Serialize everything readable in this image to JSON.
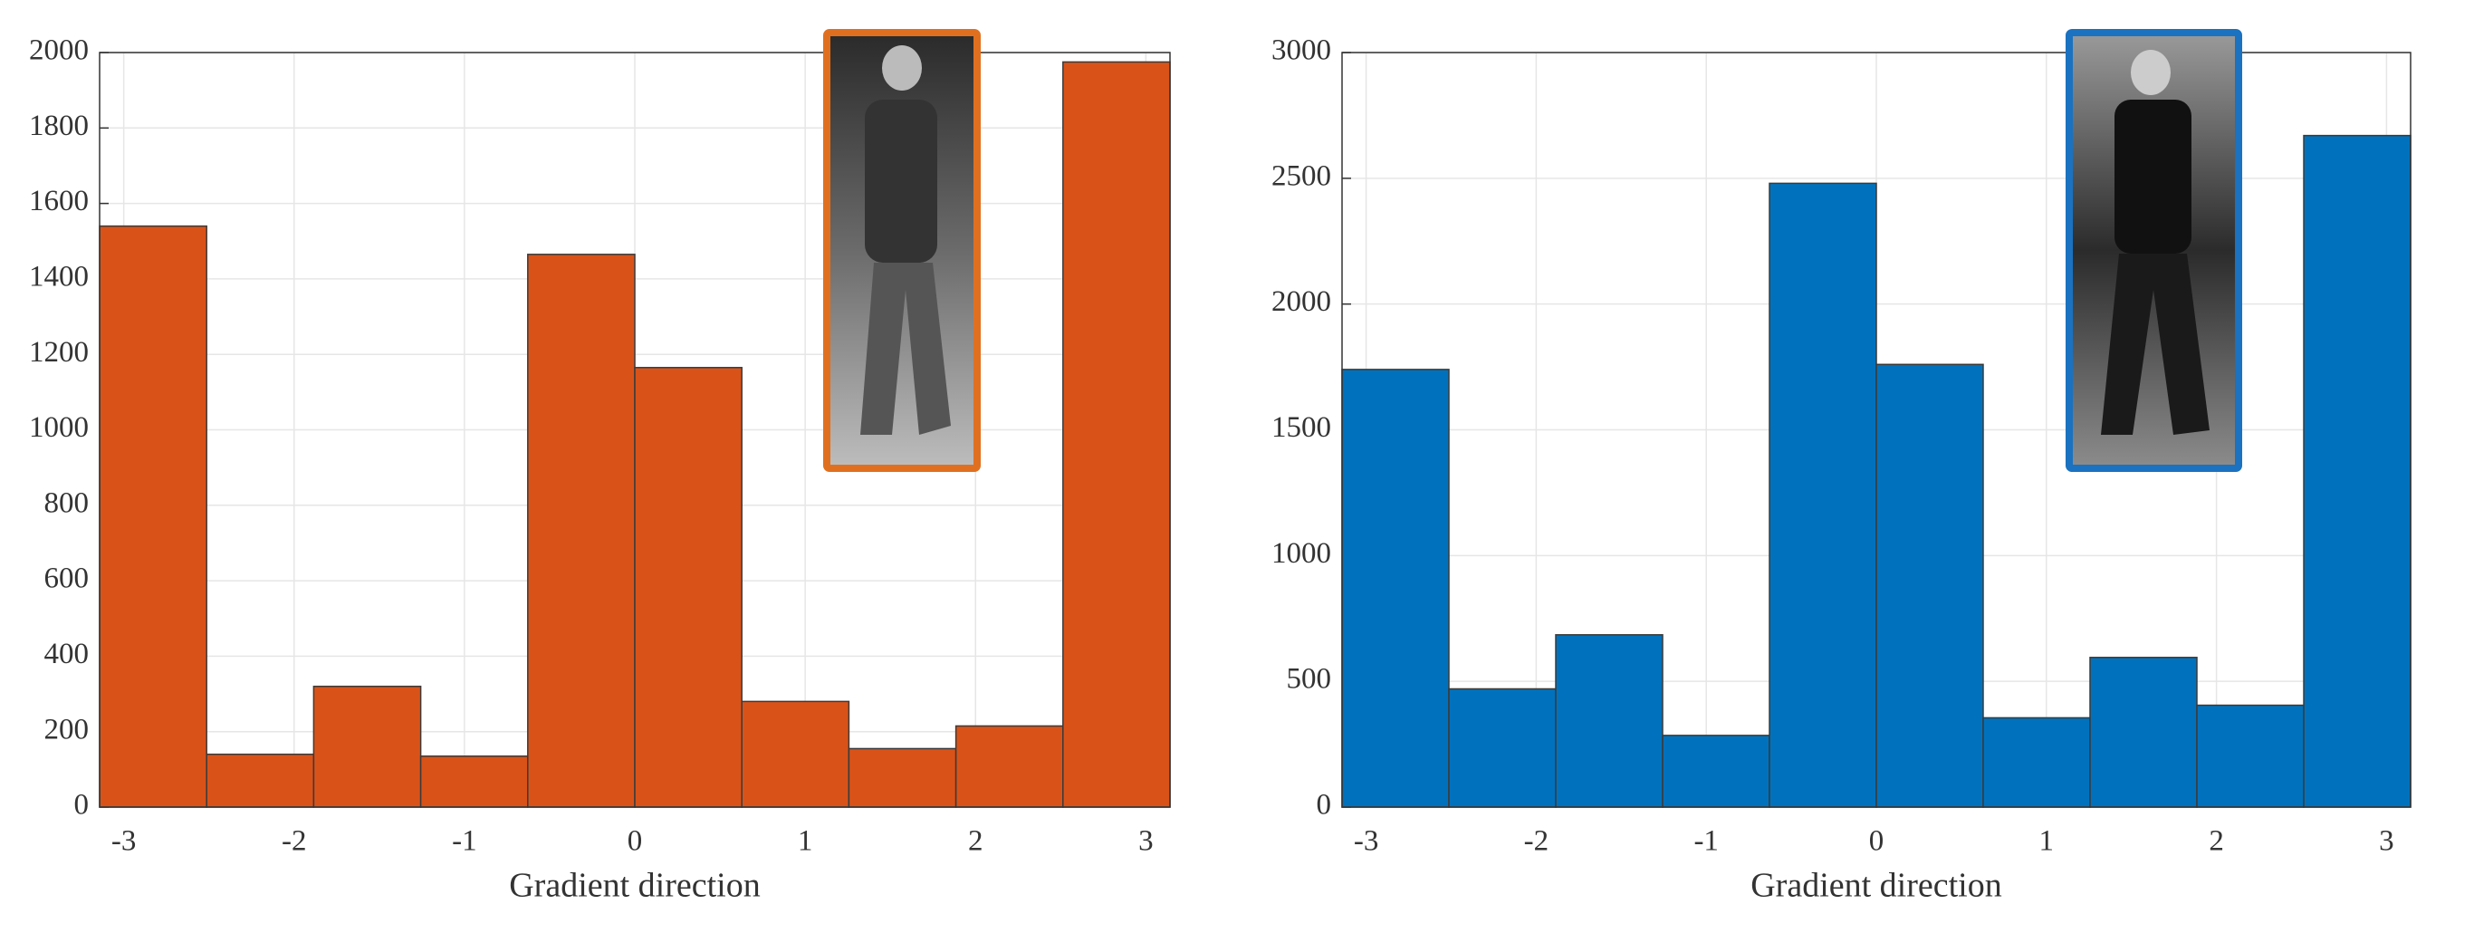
{
  "chart_data": [
    {
      "type": "histogram",
      "xlabel": "Gradient direction",
      "color": "#d95319",
      "bins": [
        -3.1416,
        -2.5133,
        -1.885,
        -1.2566,
        -0.6283,
        0,
        0.6283,
        1.2566,
        1.885,
        2.5133,
        3.1416
      ],
      "values": [
        1540,
        140,
        320,
        135,
        1465,
        1165,
        280,
        155,
        215,
        1975
      ],
      "xlim": [
        -3.1416,
        3.1416
      ],
      "xticks": [
        -3,
        -2,
        -1,
        0,
        1,
        2,
        3
      ],
      "ylim": [
        0,
        2000
      ],
      "yticks": [
        0,
        200,
        400,
        600,
        800,
        1000,
        1200,
        1400,
        1600,
        1800,
        2000
      ],
      "grid": true
    },
    {
      "type": "histogram",
      "xlabel": "Gradient direction",
      "color": "#0072bd",
      "bins": [
        -3.1416,
        -2.5133,
        -1.885,
        -1.2566,
        -0.6283,
        0,
        0.6283,
        1.2566,
        1.885,
        2.5133,
        3.1416
      ],
      "values": [
        1740,
        470,
        685,
        285,
        2480,
        1760,
        355,
        595,
        405,
        2670
      ],
      "xlim": [
        -3.1416,
        3.1416
      ],
      "xticks": [
        -3,
        -2,
        -1,
        0,
        1,
        2,
        3
      ],
      "ylim": [
        0,
        3000
      ],
      "yticks": [
        0,
        500,
        1000,
        1500,
        2000,
        2500,
        3000
      ],
      "grid": true
    }
  ]
}
